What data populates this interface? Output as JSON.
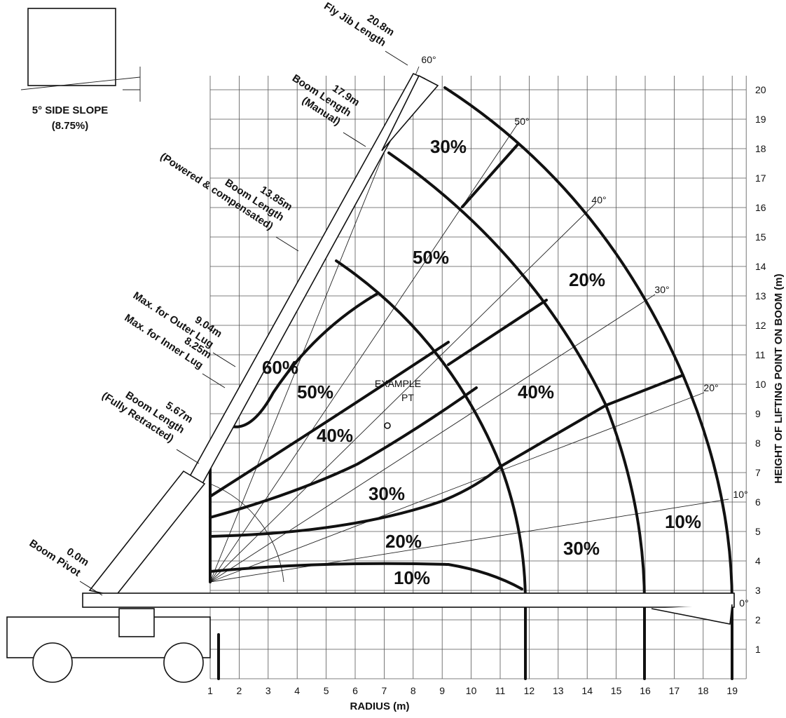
{
  "side_slope": {
    "title": "5° SIDE SLOPE",
    "subtitle": "(8.75%)"
  },
  "callouts": [
    {
      "length": "20.8m",
      "lines": [
        "Fly Jib Length"
      ]
    },
    {
      "length": "17.9m",
      "lines": [
        "Boom Length",
        "(Manual)"
      ]
    },
    {
      "length": "13.85m",
      "lines": [
        "Boom Length",
        "(Powered & compensated)"
      ]
    },
    {
      "length": "9.04m",
      "lines": [
        "Max. for Outer Lug"
      ]
    },
    {
      "length": "8.25m",
      "lines": [
        "Max. for Inner Lug"
      ]
    },
    {
      "length": "5.67m",
      "lines": [
        "Boom Length",
        "(Fully Retracted)"
      ]
    },
    {
      "length": "0.0m",
      "lines": [
        "Boom Pivot"
      ]
    }
  ],
  "angles": [
    "60°",
    "50°",
    "40°",
    "30°",
    "20°",
    "10°",
    "0°"
  ],
  "zones": [
    "30%",
    "50%",
    "20%",
    "60%",
    "50%",
    "40%",
    "40%",
    "30%",
    "10%",
    "30%",
    "20%",
    "10%"
  ],
  "example": {
    "line1": "EXAMPLE",
    "line2": "PT"
  },
  "axes": {
    "x_title": "RADIUS (m)",
    "x_ticks": [
      1,
      2,
      3,
      4,
      5,
      6,
      7,
      8,
      9,
      10,
      11,
      12,
      13,
      14,
      15,
      16,
      17,
      18,
      19
    ],
    "y_title": "HEIGHT OF LIFTING POINT ON BOOM (m)",
    "y_ticks": [
      1,
      2,
      3,
      4,
      5,
      6,
      7,
      8,
      9,
      10,
      11,
      12,
      13,
      14,
      15,
      16,
      17,
      18,
      19,
      20
    ]
  }
}
